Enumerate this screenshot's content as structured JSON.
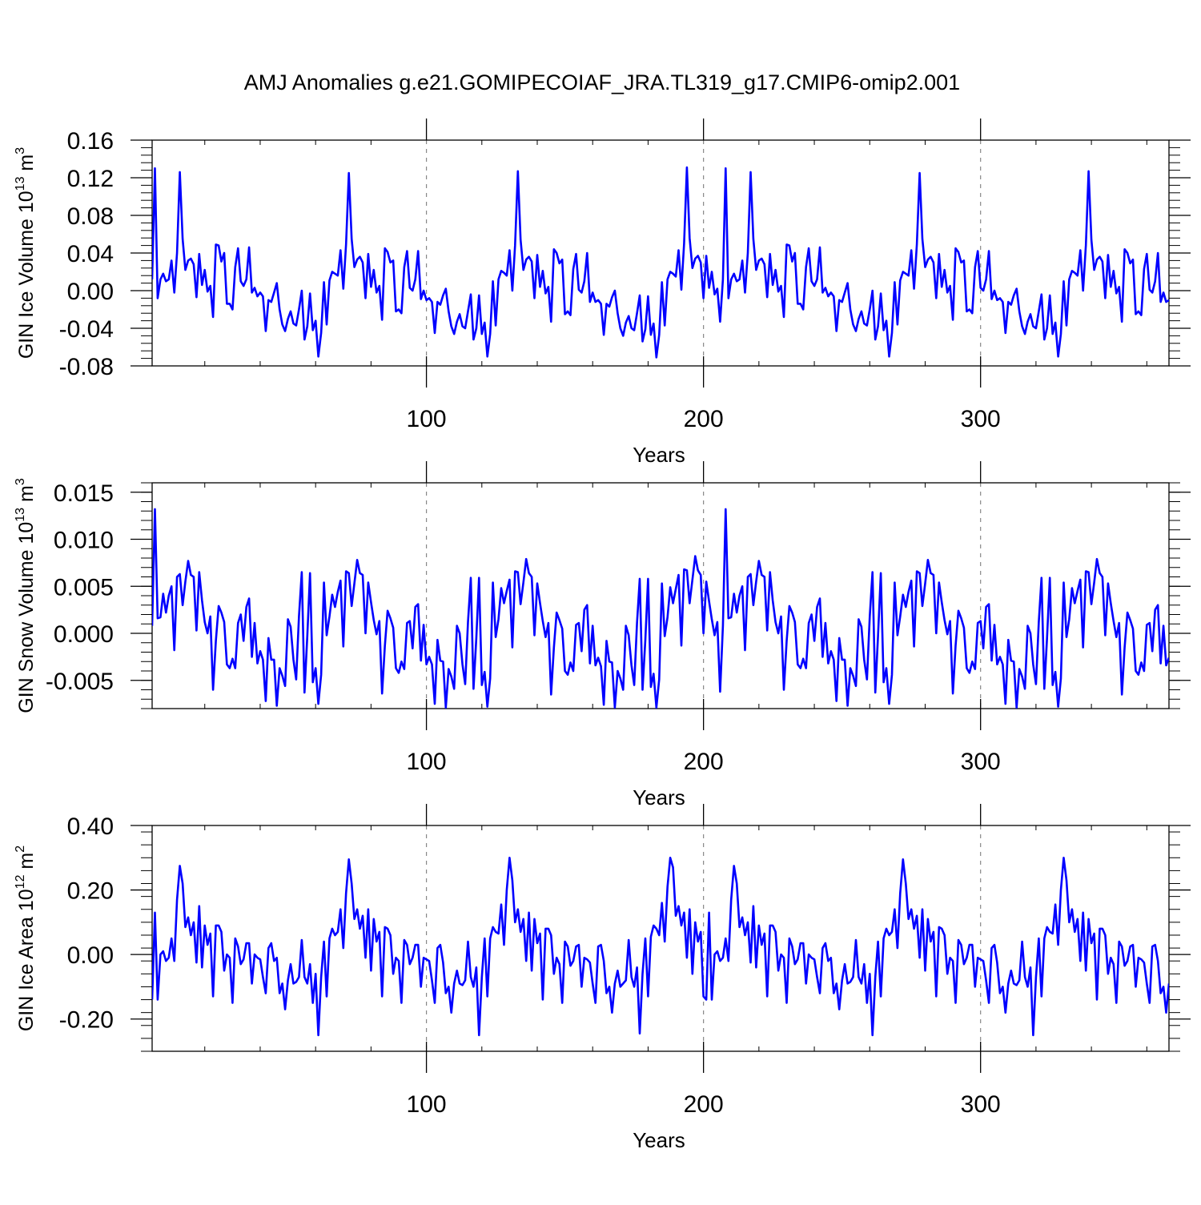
{
  "title": "AMJ Anomalies g.e21.GOMIPECOIAF_JRA.TL319_g17.CMIP6-omip2.001",
  "chart_data": [
    {
      "type": "line",
      "name": "ice-volume",
      "ylabel": {
        "main": "GIN Ice Volume 10",
        "sup": "13",
        "mid": " m",
        "sup2": "3"
      },
      "xlabel": "Years",
      "xlim": [
        1,
        368
      ],
      "ylim": [
        -0.08,
        0.16
      ],
      "yticks": [
        -0.08,
        -0.04,
        0.0,
        0.04,
        0.08,
        0.12,
        0.16
      ],
      "ytick_labels": [
        "-0.08",
        "-0.04",
        "0.00",
        "0.04",
        "0.08",
        "0.12",
        "0.16"
      ],
      "xticks": [
        100,
        200,
        300
      ],
      "xtick_labels": [
        "100",
        "200",
        "300"
      ],
      "grid": "x-dashed",
      "line_color": "#0000ff",
      "cycle": [
        0.012,
        0.13,
        -0.008,
        0.012,
        0.018,
        0.01,
        0.012,
        0.032,
        -0.002,
        0.04,
        0.126,
        0.055,
        0.022,
        0.032,
        0.034,
        0.028,
        -0.007,
        0.039,
        0.006,
        0.022,
        -0.001,
        0.005,
        -0.028,
        0.049,
        0.048,
        0.031,
        0.04,
        -0.014,
        -0.014,
        -0.02,
        0.025,
        0.045,
        0.01,
        0.005,
        0.012,
        0.046,
        -0.002,
        0.003,
        -0.006,
        -0.002,
        -0.006,
        -0.043,
        -0.01,
        -0.012,
        -0.002,
        0.008,
        -0.02,
        -0.036,
        -0.043,
        -0.03,
        -0.022,
        -0.035,
        -0.037,
        -0.02,
        0.0,
        -0.052,
        -0.038,
        -0.003,
        -0.042,
        -0.032,
        -0.07,
        -0.045,
        0.009,
        -0.036,
        0.011,
        0.02,
        0.018,
        0.016,
        0.043,
        0.002,
        0.049,
        0.125,
        0.055,
        0.025,
        0.033,
        0.036,
        0.03,
        -0.008,
        0.039,
        0.004,
        0.022,
        -0.002,
        0.005,
        -0.031,
        0.045,
        0.041,
        0.03,
        0.032,
        -0.022,
        -0.02,
        -0.024,
        0.025,
        0.042,
        0.003,
        0.0,
        0.012,
        0.042,
        -0.009,
        0.0,
        -0.01,
        -0.008,
        -0.012,
        -0.045,
        -0.012,
        -0.015,
        -0.005,
        0.002,
        -0.022,
        -0.038,
        -0.046,
        -0.033,
        -0.025,
        -0.038,
        -0.04,
        -0.022,
        -0.004,
        -0.052,
        -0.04,
        -0.005,
        -0.046,
        -0.034,
        -0.07,
        -0.046,
        0.01,
        -0.037,
        0.012,
        0.021,
        0.019,
        0.016,
        0.043,
        0.0,
        0.048,
        0.127,
        0.054,
        0.022,
        0.033,
        0.036,
        0.031,
        -0.008,
        0.038,
        0.004,
        0.021,
        -0.003,
        0.004,
        -0.033,
        0.044,
        0.04,
        0.029,
        0.033,
        -0.025,
        -0.022,
        -0.026,
        0.023,
        0.039,
        0.001,
        -0.002,
        0.01,
        0.04,
        -0.012,
        -0.002,
        -0.012,
        -0.01,
        -0.014,
        -0.047,
        -0.014,
        -0.017,
        -0.007,
        0.0,
        -0.024,
        -0.04,
        -0.048,
        -0.034,
        -0.027,
        -0.04,
        -0.042,
        -0.024,
        -0.005,
        -0.054,
        -0.041,
        -0.006,
        -0.047,
        -0.035,
        -0.071,
        -0.047,
        0.009,
        -0.037,
        0.012,
        0.02,
        0.018,
        0.015,
        0.043,
        0.001,
        0.05,
        0.131,
        0.056,
        0.024,
        0.034,
        0.037,
        0.03,
        -0.008,
        0.037,
        0.003,
        0.02,
        -0.004,
        0.002,
        -0.033
      ]
    },
    {
      "type": "line",
      "name": "snow-volume",
      "ylabel": {
        "main": "GIN Snow Volume 10",
        "sup": "13",
        "mid": " m",
        "sup2": "3"
      },
      "xlabel": "Years",
      "xlim": [
        1,
        368
      ],
      "ylim": [
        -0.008,
        0.016
      ],
      "yticks": [
        -0.005,
        0.0,
        0.005,
        0.01,
        0.015
      ],
      "ytick_labels": [
        "-0.005",
        "0.000",
        "0.005",
        "0.010",
        "0.015"
      ],
      "xticks": [
        100,
        200,
        300
      ],
      "xtick_labels": [
        "100",
        "200",
        "300"
      ],
      "grid": "x-dashed",
      "line_color": "#0000ff",
      "cycle": [
        0.0008,
        0.0132,
        0.0016,
        0.0017,
        0.0042,
        0.0022,
        0.004,
        0.005,
        -0.0018,
        0.006,
        0.0063,
        0.003,
        0.0055,
        0.0077,
        0.0062,
        0.006,
        0.0003,
        0.0065,
        0.0035,
        0.0012,
        0.0,
        0.0018,
        -0.006,
        -0.0008,
        0.0029,
        0.0022,
        0.0012,
        -0.0033,
        -0.0037,
        -0.0027,
        -0.0037,
        0.0011,
        0.002,
        -0.0008,
        0.0028,
        0.0037,
        -0.0025,
        0.0011,
        -0.0032,
        -0.0019,
        -0.0028,
        -0.0072,
        -0.0005,
        -0.0028,
        -0.0028,
        -0.0077,
        -0.0037,
        -0.0045,
        -0.0056,
        0.0015,
        0.0007,
        -0.0028,
        -0.0049,
        0.0018,
        0.0065,
        -0.0063,
        -0.0003,
        0.0064,
        -0.0052,
        -0.0037,
        -0.0075,
        -0.0044,
        0.0054,
        -0.0002,
        0.0018,
        0.0041,
        0.0028,
        0.0044,
        0.0056,
        -0.0014,
        0.0066,
        0.0064,
        0.0029,
        0.0053,
        0.0078,
        0.0064,
        0.0062,
        0.0,
        0.0054,
        0.0033,
        0.0014,
        -0.0001,
        0.0013,
        -0.0064,
        -0.0013,
        0.0024,
        0.0016,
        0.0006,
        -0.0037,
        -0.0042,
        -0.003,
        -0.0038,
        0.0011,
        0.0013,
        -0.0016,
        0.0028,
        0.0031,
        -0.0029,
        0.0009,
        -0.0033,
        -0.0025,
        -0.0033,
        -0.0075,
        -0.0007,
        -0.0029,
        -0.003,
        -0.0079,
        -0.0038,
        -0.0046,
        -0.0059,
        0.0008,
        0.0,
        -0.0033,
        -0.0054,
        0.0012,
        0.0059,
        -0.0059,
        -0.0005,
        0.0059,
        -0.0055,
        -0.0041,
        -0.0078,
        -0.0048,
        0.0054,
        -0.0004,
        0.0015,
        0.0048,
        0.0032,
        0.0045,
        0.0057,
        -0.0015,
        0.0066,
        0.0065,
        0.0031,
        0.0054,
        0.0079,
        0.0064,
        0.006,
        -0.0002,
        0.0053,
        0.0032,
        0.0013,
        -0.0004,
        0.0011,
        -0.0065,
        -0.0015,
        0.0022,
        0.0014,
        0.0005,
        -0.004,
        -0.0044,
        -0.0031,
        -0.004,
        0.0009,
        0.0011,
        -0.0019,
        0.0025,
        0.003,
        -0.0032,
        0.0008,
        -0.0034,
        -0.0026,
        -0.0035,
        -0.0076,
        -0.0008,
        -0.003,
        -0.0031,
        -0.0079,
        -0.004,
        -0.0048,
        -0.006,
        0.0008,
        -0.0002,
        -0.0034,
        -0.0055,
        0.0011,
        0.0058,
        -0.006,
        -0.0007,
        0.0058,
        -0.0057,
        -0.0043,
        -0.0079,
        -0.0049,
        0.0053,
        -0.0003,
        0.0017,
        0.0049,
        0.0032,
        0.0047,
        0.0062,
        -0.0013,
        0.0068,
        0.0067,
        0.0032,
        0.0057,
        0.0082,
        0.0067,
        0.0062,
        0.0,
        0.0055,
        0.0034,
        0.0015,
        -0.0002,
        0.0012,
        -0.0062
      ]
    },
    {
      "type": "line",
      "name": "ice-area",
      "ylabel": {
        "main": "GIN Ice Area 10",
        "sup": "12",
        "mid": " m",
        "sup2": "2"
      },
      "xlabel": "Years",
      "xlim": [
        1,
        368
      ],
      "ylim": [
        -0.3,
        0.4
      ],
      "yticks": [
        -0.2,
        0.0,
        0.2,
        0.4
      ],
      "ytick_labels": [
        "-0.20",
        "0.00",
        "0.20",
        "0.40"
      ],
      "xticks": [
        100,
        200,
        300
      ],
      "xtick_labels": [
        "100",
        "200",
        "300"
      ],
      "grid": "x-dashed",
      "line_color": "#0000ff",
      "cycle": [
        -0.14,
        0.13,
        -0.14,
        0.0,
        0.01,
        -0.02,
        -0.01,
        0.05,
        -0.02,
        0.17,
        0.275,
        0.22,
        0.085,
        0.115,
        0.06,
        0.1,
        -0.025,
        0.15,
        -0.04,
        0.09,
        0.03,
        0.065,
        -0.13,
        0.09,
        0.09,
        0.07,
        -0.05,
        0.0,
        -0.01,
        -0.15,
        0.05,
        0.025,
        -0.03,
        -0.015,
        0.035,
        0.035,
        -0.09,
        0.0,
        -0.01,
        -0.015,
        -0.07,
        -0.12,
        0.02,
        0.035,
        -0.02,
        -0.01,
        -0.12,
        -0.09,
        -0.17,
        -0.08,
        -0.03,
        -0.09,
        -0.085,
        -0.07,
        0.045,
        -0.07,
        -0.09,
        -0.03,
        -0.15,
        -0.06,
        -0.25,
        -0.07,
        0.04,
        -0.13,
        0.05,
        0.08,
        0.06,
        0.07,
        0.14,
        0.02,
        0.19,
        0.295,
        0.22,
        0.11,
        0.14,
        0.08,
        0.12,
        -0.01,
        0.14,
        -0.05,
        0.11,
        0.04,
        0.07,
        -0.13,
        0.085,
        0.08,
        0.06,
        -0.06,
        -0.01,
        -0.02,
        -0.15,
        0.045,
        0.03,
        -0.03,
        -0.01,
        0.03,
        0.03,
        -0.1,
        -0.01,
        -0.015,
        -0.02,
        -0.08,
        -0.15,
        0.02,
        0.03,
        -0.025,
        -0.12,
        -0.1,
        -0.18,
        -0.09,
        -0.05,
        -0.09,
        -0.095,
        -0.08,
        0.04,
        -0.07,
        -0.1,
        -0.04,
        -0.25,
        -0.07,
        0.05,
        -0.13,
        0.05,
        0.085,
        0.07,
        0.065,
        0.155,
        0.03,
        0.2,
        0.3,
        0.23,
        0.1,
        0.14,
        0.07,
        0.11,
        -0.02,
        0.13,
        -0.05,
        0.11,
        0.035,
        0.065,
        -0.14,
        0.08,
        0.08,
        0.06,
        -0.06,
        -0.01,
        -0.03,
        -0.15,
        0.04,
        0.025,
        -0.035,
        -0.02,
        0.025,
        0.03,
        -0.1,
        -0.01,
        -0.015,
        -0.025,
        -0.09,
        -0.15,
        0.025,
        0.03,
        -0.02,
        -0.12,
        -0.1,
        -0.18,
        -0.09,
        -0.05,
        -0.1,
        -0.09,
        -0.08,
        0.045,
        -0.07,
        -0.1,
        -0.04,
        -0.245,
        -0.06,
        0.05,
        -0.13,
        0.055,
        0.09,
        0.08,
        0.06,
        0.16,
        0.04,
        0.21,
        0.3,
        0.27,
        0.12,
        0.15,
        0.09,
        0.13,
        -0.01,
        0.14,
        -0.06,
        0.1,
        0.04,
        0.07,
        -0.13
      ]
    }
  ]
}
